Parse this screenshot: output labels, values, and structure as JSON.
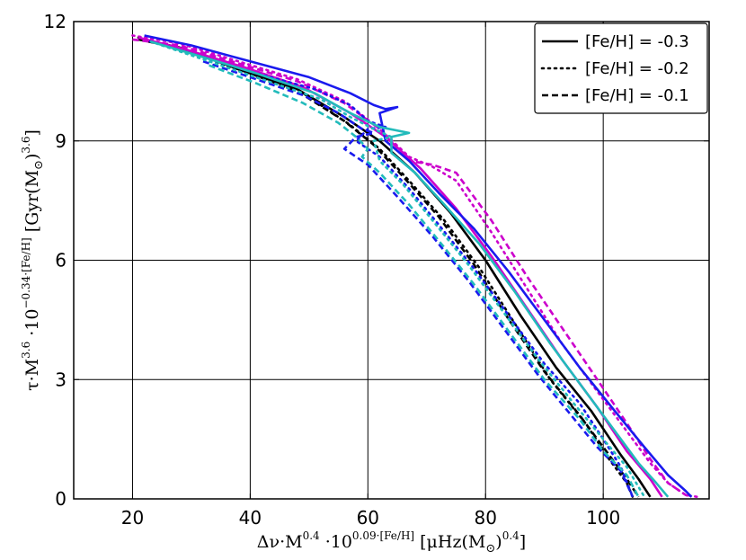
{
  "chart_data": {
    "type": "line",
    "title": "",
    "xlabel_parts": [
      "Δν·M",
      "0.4",
      " ·10",
      "0.09·[Fe/H]",
      " [μHz(M",
      "⊙",
      ")",
      "0.4",
      "]"
    ],
    "ylabel_parts": [
      "τ·M",
      "3.6",
      " ·10",
      "−0.34·[Fe/H]",
      " [Gyr(M",
      "⊙",
      ")",
      "3.6",
      "]"
    ],
    "xlim": [
      10,
      118
    ],
    "ylim": [
      0,
      12
    ],
    "xticks": [
      20,
      40,
      60,
      80,
      100
    ],
    "yticks": [
      0,
      3,
      6,
      9,
      12
    ],
    "grid": true,
    "legend_position": "top-right",
    "legend": [
      {
        "label": "[Fe/H] = -0.3",
        "style": "solid"
      },
      {
        "label": "[Fe/H] = -0.2",
        "style": "dotted"
      },
      {
        "label": "[Fe/H] = -0.1",
        "style": "dashed"
      }
    ],
    "series": [
      {
        "color": "#000000",
        "style": "solid",
        "points": [
          [
            21,
            11.55
          ],
          [
            28,
            11.35
          ],
          [
            38,
            10.8
          ],
          [
            48,
            10.3
          ],
          [
            56,
            9.6
          ],
          [
            62,
            9.0
          ],
          [
            68,
            8.2
          ],
          [
            74,
            7.2
          ],
          [
            80,
            6.0
          ],
          [
            86,
            4.6
          ],
          [
            92,
            3.3
          ],
          [
            98,
            2.2
          ],
          [
            103,
            1.1
          ],
          [
            106,
            0.5
          ],
          [
            108,
            0.05
          ]
        ]
      },
      {
        "color": "#000000",
        "style": "dotted",
        "points": [
          [
            21,
            11.6
          ],
          [
            29,
            11.3
          ],
          [
            39,
            10.7
          ],
          [
            49,
            10.2
          ],
          [
            57,
            9.4
          ],
          [
            62,
            8.8
          ],
          [
            67,
            8.0
          ],
          [
            73,
            7.0
          ],
          [
            79,
            5.8
          ],
          [
            85,
            4.4
          ],
          [
            91,
            3.0
          ],
          [
            97,
            1.9
          ],
          [
            101,
            1.0
          ],
          [
            104,
            0.4
          ],
          [
            105,
            0.05
          ]
        ]
      },
      {
        "color": "#000000",
        "style": "dashed",
        "points": [
          [
            21,
            11.55
          ],
          [
            29,
            11.3
          ],
          [
            39,
            10.75
          ],
          [
            48,
            10.25
          ],
          [
            56,
            9.5
          ],
          [
            61,
            8.9
          ],
          [
            66,
            8.1
          ],
          [
            72,
            7.1
          ],
          [
            78,
            5.9
          ],
          [
            84,
            4.5
          ],
          [
            90,
            3.2
          ],
          [
            96,
            2.1
          ],
          [
            101,
            1.1
          ],
          [
            104,
            0.5
          ],
          [
            106,
            0.05
          ]
        ]
      },
      {
        "color": "#cc00cc",
        "style": "solid",
        "points": [
          [
            21,
            11.6
          ],
          [
            29,
            11.3
          ],
          [
            39,
            10.85
          ],
          [
            49,
            10.35
          ],
          [
            57,
            9.7
          ],
          [
            63,
            9.1
          ],
          [
            69,
            8.3
          ],
          [
            75,
            7.3
          ],
          [
            81,
            6.1
          ],
          [
            87,
            4.8
          ],
          [
            93,
            3.5
          ],
          [
            99,
            2.3
          ],
          [
            104,
            1.2
          ],
          [
            108,
            0.5
          ],
          [
            110,
            0.05
          ]
        ]
      },
      {
        "color": "#cc00cc",
        "style": "dotted",
        "points": [
          [
            20,
            11.65
          ],
          [
            28,
            11.45
          ],
          [
            38,
            11.0
          ],
          [
            48,
            10.55
          ],
          [
            56,
            10.0
          ],
          [
            62,
            9.3
          ],
          [
            67,
            8.6
          ],
          [
            71,
            8.35
          ],
          [
            75,
            8.0
          ],
          [
            81,
            6.7
          ],
          [
            87,
            5.3
          ],
          [
            93,
            3.9
          ],
          [
            99,
            2.7
          ],
          [
            104,
            1.7
          ],
          [
            108,
            0.9
          ],
          [
            111,
            0.4
          ],
          [
            114,
            0.1
          ],
          [
            116,
            0.05
          ]
        ]
      },
      {
        "color": "#cc00cc",
        "style": "dashed",
        "points": [
          [
            20,
            11.55
          ],
          [
            28,
            11.4
          ],
          [
            38,
            10.95
          ],
          [
            48,
            10.5
          ],
          [
            56,
            9.95
          ],
          [
            62,
            9.3
          ],
          [
            67,
            8.5
          ],
          [
            71,
            8.4
          ],
          [
            75,
            8.2
          ],
          [
            81,
            7.0
          ],
          [
            87,
            5.6
          ],
          [
            93,
            4.3
          ],
          [
            99,
            3.0
          ],
          [
            104,
            1.9
          ],
          [
            108,
            1.0
          ],
          [
            111,
            0.4
          ],
          [
            114,
            0.1
          ],
          [
            115,
            0.05
          ]
        ]
      },
      {
        "color": "#1a1aee",
        "style": "solid",
        "points": [
          [
            22,
            11.65
          ],
          [
            30,
            11.4
          ],
          [
            40,
            11.0
          ],
          [
            50,
            10.6
          ],
          [
            57,
            10.2
          ],
          [
            61,
            9.9
          ],
          [
            63,
            9.8
          ],
          [
            65,
            9.85
          ],
          [
            62,
            9.7
          ],
          [
            63,
            9.0
          ],
          [
            67,
            8.5
          ],
          [
            72,
            7.7
          ],
          [
            78,
            6.8
          ],
          [
            84,
            5.7
          ],
          [
            90,
            4.5
          ],
          [
            96,
            3.3
          ],
          [
            102,
            2.2
          ],
          [
            107,
            1.3
          ],
          [
            111,
            0.6
          ],
          [
            114,
            0.2
          ],
          [
            115,
            0.05
          ]
        ]
      },
      {
        "color": "#1a1aee",
        "style": "dotted",
        "points": [
          [
            23,
            11.5
          ],
          [
            31,
            11.15
          ],
          [
            41,
            10.7
          ],
          [
            51,
            10.3
          ],
          [
            57,
            9.9
          ],
          [
            60,
            9.5
          ],
          [
            63,
            9.35
          ],
          [
            60,
            9.3
          ],
          [
            58,
            9.0
          ],
          [
            62,
            8.6
          ],
          [
            67,
            7.8
          ],
          [
            72,
            6.9
          ],
          [
            78,
            5.8
          ],
          [
            84,
            4.6
          ],
          [
            90,
            3.4
          ],
          [
            96,
            2.4
          ],
          [
            100,
            1.5
          ],
          [
            103,
            0.8
          ],
          [
            105,
            0.05
          ]
        ]
      },
      {
        "color": "#1a1aee",
        "style": "dashed",
        "points": [
          [
            32,
            11.0
          ],
          [
            40,
            10.6
          ],
          [
            49,
            10.15
          ],
          [
            55,
            9.7
          ],
          [
            59,
            9.3
          ],
          [
            61,
            9.2
          ],
          [
            58,
            9.1
          ],
          [
            56,
            8.8
          ],
          [
            60,
            8.4
          ],
          [
            65,
            7.6
          ],
          [
            71,
            6.6
          ],
          [
            77,
            5.5
          ],
          [
            83,
            4.3
          ],
          [
            89,
            3.1
          ],
          [
            94,
            2.2
          ],
          [
            99,
            1.3
          ],
          [
            103,
            0.7
          ],
          [
            105,
            0.05
          ]
        ]
      },
      {
        "color": "#22bbbb",
        "style": "solid",
        "points": [
          [
            23,
            11.5
          ],
          [
            31,
            11.15
          ],
          [
            41,
            10.7
          ],
          [
            51,
            10.2
          ],
          [
            57,
            9.7
          ],
          [
            62,
            9.35
          ],
          [
            67,
            9.2
          ],
          [
            64,
            9.1
          ],
          [
            64,
            8.7
          ],
          [
            68,
            8.2
          ],
          [
            73,
            7.4
          ],
          [
            79,
            6.4
          ],
          [
            85,
            5.2
          ],
          [
            91,
            3.9
          ],
          [
            97,
            2.7
          ],
          [
            102,
            1.7
          ],
          [
            106,
            0.9
          ],
          [
            109,
            0.4
          ],
          [
            111,
            0.05
          ]
        ]
      },
      {
        "color": "#22bbbb",
        "style": "dotted",
        "points": [
          [
            24,
            11.45
          ],
          [
            32,
            11.05
          ],
          [
            42,
            10.55
          ],
          [
            52,
            10.05
          ],
          [
            57,
            9.6
          ],
          [
            61,
            9.3
          ],
          [
            64,
            9.1
          ],
          [
            61,
            9.0
          ],
          [
            62,
            8.5
          ],
          [
            66,
            7.9
          ],
          [
            71,
            7.0
          ],
          [
            77,
            5.9
          ],
          [
            83,
            4.7
          ],
          [
            89,
            3.5
          ],
          [
            95,
            2.4
          ],
          [
            100,
            1.5
          ],
          [
            104,
            0.8
          ],
          [
            106,
            0.3
          ],
          [
            107,
            0.05
          ]
        ]
      },
      {
        "color": "#22bbbb",
        "style": "dashed",
        "points": [
          [
            33,
            10.9
          ],
          [
            41,
            10.45
          ],
          [
            49,
            9.95
          ],
          [
            55,
            9.45
          ],
          [
            58,
            9.1
          ],
          [
            60,
            8.8
          ],
          [
            59,
            8.6
          ],
          [
            62,
            8.2
          ],
          [
            67,
            7.4
          ],
          [
            72,
            6.5
          ],
          [
            78,
            5.4
          ],
          [
            84,
            4.2
          ],
          [
            90,
            3.0
          ],
          [
            96,
            2.0
          ],
          [
            100,
            1.2
          ],
          [
            104,
            0.6
          ],
          [
            106,
            0.05
          ]
        ]
      }
    ]
  }
}
